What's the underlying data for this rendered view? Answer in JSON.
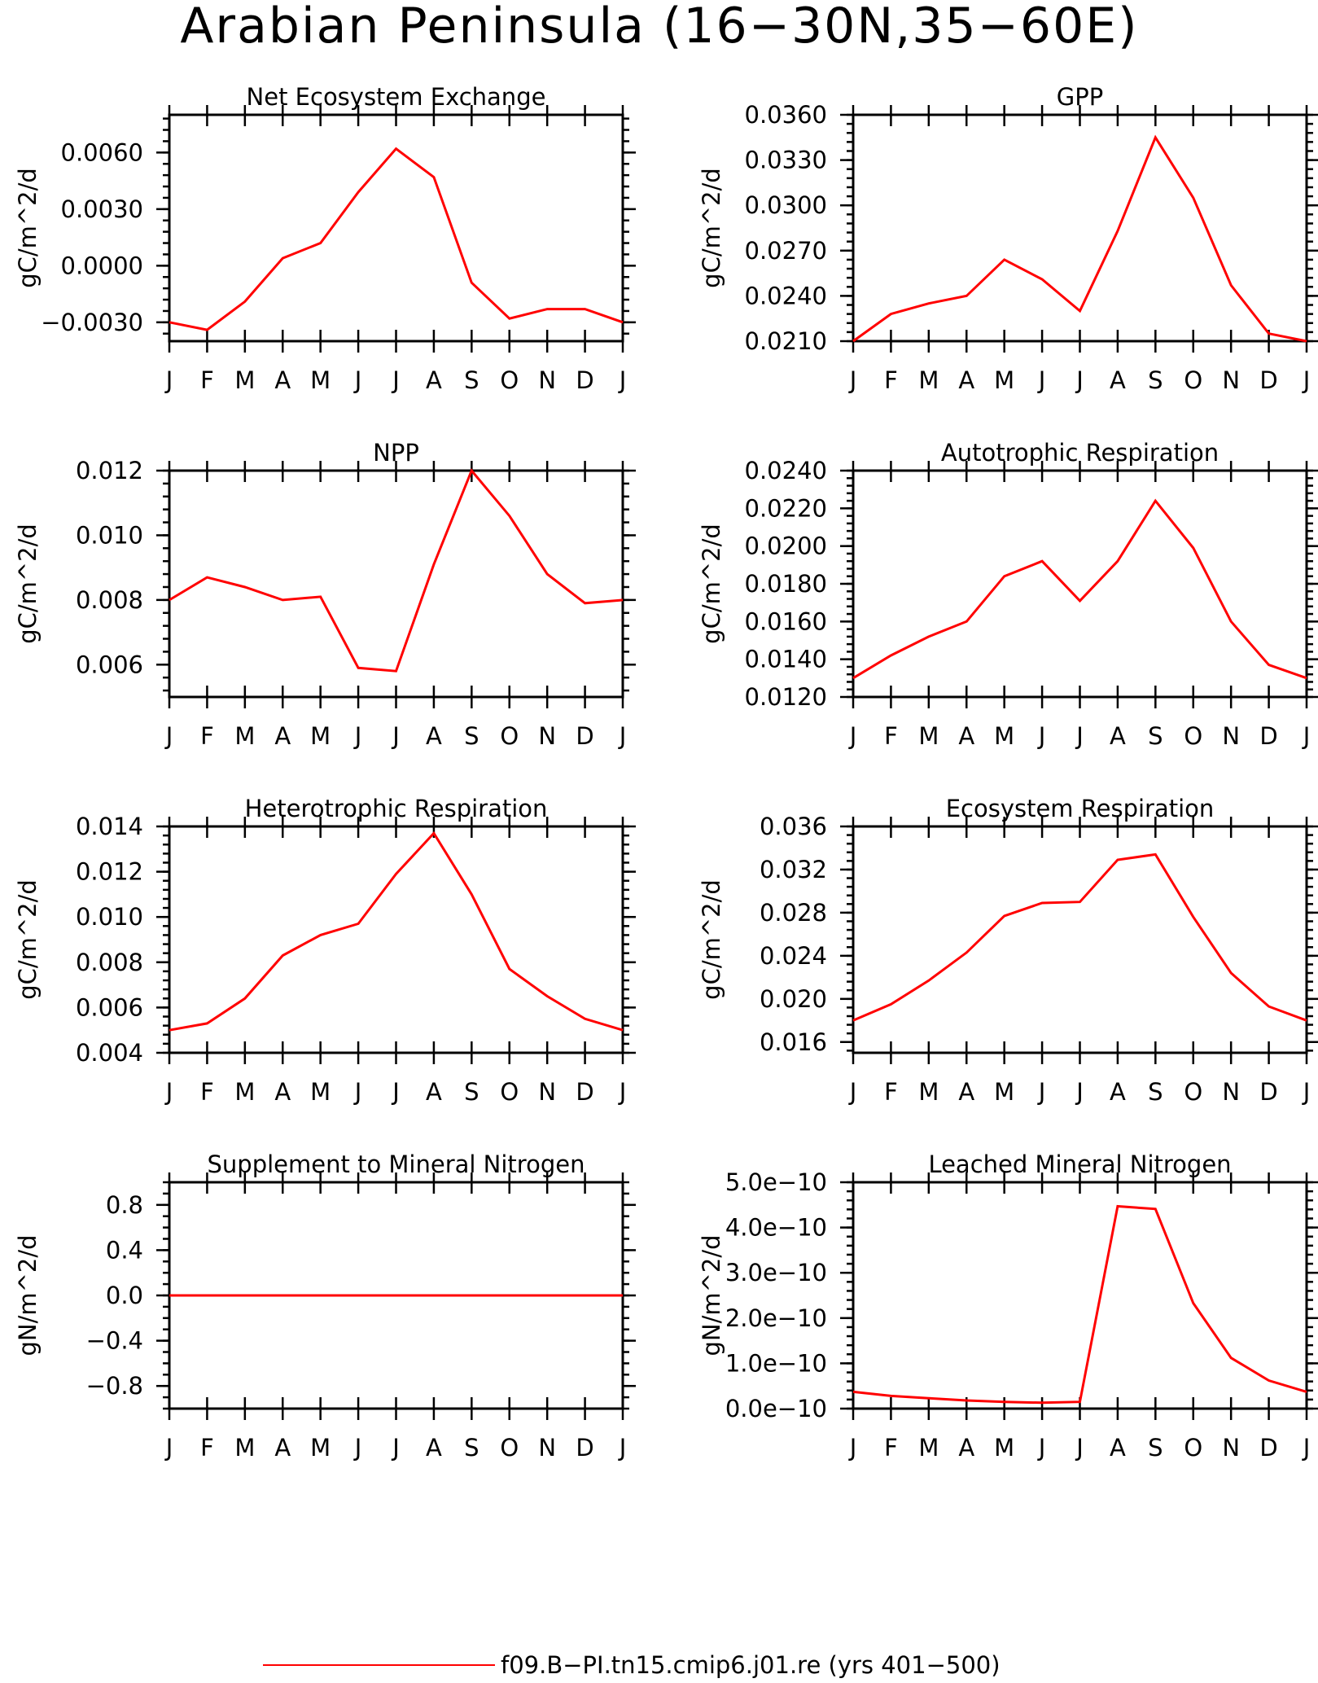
{
  "title": "Arabian Peninsula (16−30N,35−60E)",
  "legend": {
    "label": "f09.B−PI.tn15.cmip6.j01.re (yrs 401−500)",
    "color": "#ff0000"
  },
  "colors": {
    "series": "#ff0000",
    "axes": "#000000",
    "background": "#ffffff"
  },
  "chart_data": [
    {
      "type": "line",
      "title": "Net Ecosystem Exchange",
      "ylabel": "gC/m^2/d",
      "categories": [
        "J",
        "F",
        "M",
        "A",
        "M",
        "J",
        "J",
        "A",
        "S",
        "O",
        "N",
        "D",
        "J"
      ],
      "ylim": [
        -0.004,
        0.008
      ],
      "yticks": [
        -0.003,
        0.0,
        0.003,
        0.006
      ],
      "ytick_labels": [
        "−0.0030",
        "0.0000",
        "0.0030",
        "0.0060"
      ],
      "yminor_step": 0.0006,
      "series": [
        {
          "values": [
            -0.003,
            -0.0034,
            -0.0019,
            0.0004,
            0.0012,
            0.0039,
            0.0062,
            0.0047,
            -0.0009,
            -0.0028,
            -0.0023,
            -0.0023,
            -0.003
          ]
        }
      ]
    },
    {
      "type": "line",
      "title": "GPP",
      "ylabel": "gC/m^2/d",
      "categories": [
        "J",
        "F",
        "M",
        "A",
        "M",
        "J",
        "J",
        "A",
        "S",
        "O",
        "N",
        "D",
        "J"
      ],
      "ylim": [
        0.021,
        0.036
      ],
      "yticks": [
        0.021,
        0.024,
        0.027,
        0.03,
        0.033,
        0.036
      ],
      "ytick_labels": [
        "0.0210",
        "0.0240",
        "0.0270",
        "0.0300",
        "0.0330",
        "0.0360"
      ],
      "yminor_step": 0.0006,
      "series": [
        {
          "values": [
            0.021,
            0.0228,
            0.0235,
            0.024,
            0.0264,
            0.0251,
            0.023,
            0.0283,
            0.0345,
            0.0305,
            0.0247,
            0.0215,
            0.021
          ]
        }
      ]
    },
    {
      "type": "line",
      "title": "NPP",
      "ylabel": "gC/m^2/d",
      "categories": [
        "J",
        "F",
        "M",
        "A",
        "M",
        "J",
        "J",
        "A",
        "S",
        "O",
        "N",
        "D",
        "J"
      ],
      "ylim": [
        0.005,
        0.012
      ],
      "yticks": [
        0.006,
        0.008,
        0.01,
        0.012
      ],
      "ytick_labels": [
        "0.006",
        "0.008",
        "0.010",
        "0.012"
      ],
      "yminor_step": 0.0004,
      "series": [
        {
          "values": [
            0.008,
            0.0087,
            0.0084,
            0.008,
            0.0081,
            0.0059,
            0.0058,
            0.0091,
            0.012,
            0.0106,
            0.0088,
            0.0079,
            0.008
          ]
        }
      ]
    },
    {
      "type": "line",
      "title": "Autotrophic Respiration",
      "ylabel": "gC/m^2/d",
      "categories": [
        "J",
        "F",
        "M",
        "A",
        "M",
        "J",
        "J",
        "A",
        "S",
        "O",
        "N",
        "D",
        "J"
      ],
      "ylim": [
        0.012,
        0.024
      ],
      "yticks": [
        0.012,
        0.014,
        0.016,
        0.018,
        0.02,
        0.022,
        0.024
      ],
      "ytick_labels": [
        "0.0120",
        "0.0140",
        "0.0160",
        "0.0180",
        "0.0200",
        "0.0220",
        "0.0240"
      ],
      "yminor_step": 0.0004,
      "series": [
        {
          "values": [
            0.013,
            0.0142,
            0.0152,
            0.016,
            0.0184,
            0.0192,
            0.0171,
            0.0192,
            0.0224,
            0.0199,
            0.016,
            0.0137,
            0.013
          ]
        }
      ]
    },
    {
      "type": "line",
      "title": "Heterotrophic Respiration",
      "ylabel": "gC/m^2/d",
      "categories": [
        "J",
        "F",
        "M",
        "A",
        "M",
        "J",
        "J",
        "A",
        "S",
        "O",
        "N",
        "D",
        "J"
      ],
      "ylim": [
        0.004,
        0.014
      ],
      "yticks": [
        0.004,
        0.006,
        0.008,
        0.01,
        0.012,
        0.014
      ],
      "ytick_labels": [
        "0.004",
        "0.006",
        "0.008",
        "0.010",
        "0.012",
        "0.014"
      ],
      "yminor_step": 0.0004,
      "series": [
        {
          "values": [
            0.005,
            0.0053,
            0.0064,
            0.0083,
            0.0092,
            0.0097,
            0.0119,
            0.0137,
            0.011,
            0.0077,
            0.0065,
            0.0055,
            0.005
          ]
        }
      ]
    },
    {
      "type": "line",
      "title": "Ecosystem Respiration",
      "ylabel": "gC/m^2/d",
      "categories": [
        "J",
        "F",
        "M",
        "A",
        "M",
        "J",
        "J",
        "A",
        "S",
        "O",
        "N",
        "D",
        "J"
      ],
      "ylim": [
        0.015,
        0.036
      ],
      "yticks": [
        0.016,
        0.02,
        0.024,
        0.028,
        0.032,
        0.036
      ],
      "ytick_labels": [
        "0.016",
        "0.020",
        "0.024",
        "0.028",
        "0.032",
        "0.036"
      ],
      "yminor_step": 0.0008,
      "series": [
        {
          "values": [
            0.018,
            0.0195,
            0.0217,
            0.0243,
            0.0277,
            0.0289,
            0.029,
            0.0329,
            0.0334,
            0.0276,
            0.0224,
            0.0193,
            0.018
          ]
        }
      ]
    },
    {
      "type": "line",
      "title": "Supplement to Mineral Nitrogen",
      "ylabel": "gN/m^2/d",
      "categories": [
        "J",
        "F",
        "M",
        "A",
        "M",
        "J",
        "J",
        "A",
        "S",
        "O",
        "N",
        "D",
        "J"
      ],
      "ylim": [
        -1.0,
        1.0
      ],
      "yticks": [
        -0.8,
        -0.4,
        0.0,
        0.4,
        0.8
      ],
      "ytick_labels": [
        "−0.8",
        "−0.4",
        "0.0",
        "0.4",
        "0.8"
      ],
      "yminor_step": 0.1,
      "series": [
        {
          "values": [
            0,
            0,
            0,
            0,
            0,
            0,
            0,
            0,
            0,
            0,
            0,
            0,
            0
          ]
        }
      ]
    },
    {
      "type": "line",
      "title": "Leached Mineral Nitrogen",
      "ylabel": "gN/m^2/d",
      "categories": [
        "J",
        "F",
        "M",
        "A",
        "M",
        "J",
        "J",
        "A",
        "S",
        "O",
        "N",
        "D",
        "J"
      ],
      "ylim": [
        0.0,
        5e-10
      ],
      "yticks": [
        0.0,
        1e-10,
        2e-10,
        3e-10,
        4e-10,
        5e-10
      ],
      "ytick_labels": [
        "0.0e−10",
        "1.0e−10",
        "2.0e−10",
        "3.0e−10",
        "4.0e−10",
        "5.0e−10"
      ],
      "yminor_step": 2e-11,
      "series": [
        {
          "values": [
            3.7e-11,
            2.8e-11,
            2.3e-11,
            1.8e-11,
            1.5e-11,
            1.3e-11,
            1.5e-11,
            4.47e-10,
            4.41e-10,
            2.33e-10,
            1.12e-10,
            6.2e-11,
            3.7e-11
          ]
        }
      ]
    }
  ]
}
